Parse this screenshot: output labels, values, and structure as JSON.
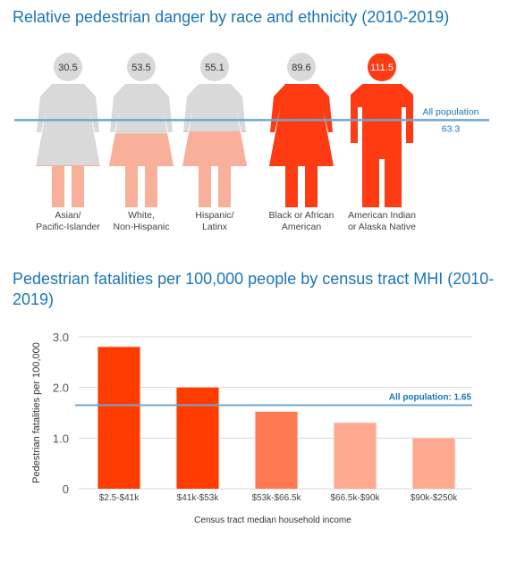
{
  "chart_data": [
    {
      "type": "bar",
      "title": "Relative pedestrian danger by race and ethnicity (2010-2019)",
      "categories": [
        [
          "Asian/",
          "Pacific-Islander"
        ],
        [
          "White,",
          "Non-Hispanic"
        ],
        [
          "Hispanic/",
          "Latinx"
        ],
        [
          "Black or African",
          "American"
        ],
        [
          "American Indian",
          "or Alaska Native"
        ]
      ],
      "values": [
        30.5,
        53.5,
        55.1,
        89.6,
        111.5
      ],
      "value_labels": [
        "30.5",
        "53.5",
        "55.1",
        "89.6",
        "111.5"
      ],
      "reference": {
        "label": "All population",
        "value_label": "63.3",
        "value": 63.3
      },
      "ylim": [
        0,
        111.5
      ],
      "colors": {
        "empty": "#d9d9d9",
        "low": "#f9b09a",
        "high": "#ff3b14",
        "line": "#6ea7d1"
      },
      "grid": false
    },
    {
      "type": "bar",
      "title": "Pedestrian fatalities per 100,000 people by census tract MHI (2010-2019)",
      "xlabel": "Census tract median household income",
      "ylabel": "Pedestrian fatalities per 100,000",
      "categories": [
        "$2.5-$41k",
        "$41k-$53k",
        "$53k-$66.5k",
        "$66.5k-$90k",
        "$90k-$250k"
      ],
      "values": [
        2.8,
        2.0,
        1.52,
        1.3,
        1.0
      ],
      "ylim": [
        0,
        3.0
      ],
      "yticks": [
        0,
        1.0,
        2.0,
        3.0
      ],
      "ytick_labels": [
        "0",
        "1.0",
        "2.0",
        "3.0"
      ],
      "reference": {
        "label": "All population: 1.65",
        "value": 1.65
      },
      "bar_colors": [
        "#ff3c00",
        "#ff3c00",
        "#ff7a52",
        "#ffaa90",
        "#ffaa90"
      ],
      "colors": {
        "line": "#6ea7d1",
        "reference_text": "#1a75b8",
        "grid": "#d6d6d6"
      },
      "grid": true
    }
  ]
}
